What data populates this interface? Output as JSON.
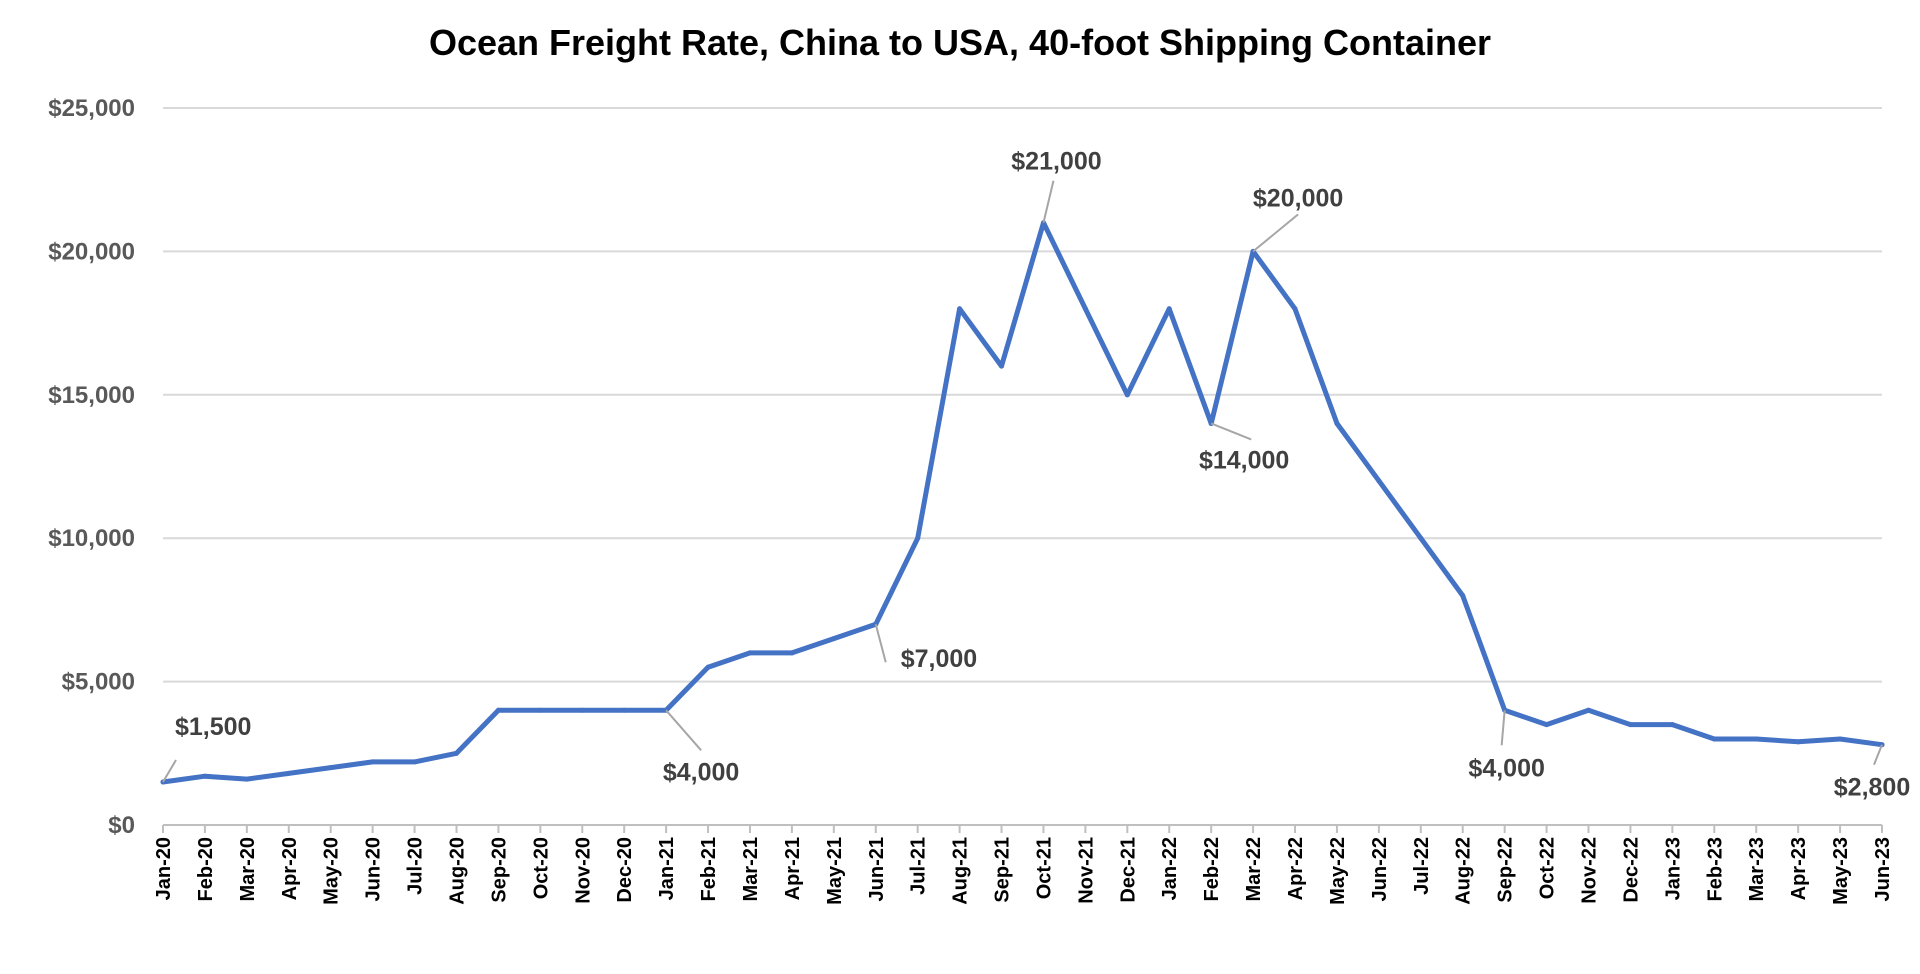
{
  "chart_data": {
    "type": "line",
    "title": "Ocean Freight Rate, China to USA, 40-foot Shipping Container",
    "xlabel": "",
    "ylabel": "",
    "ylim": [
      0,
      25000
    ],
    "yticks": [
      0,
      5000,
      10000,
      15000,
      20000,
      25000
    ],
    "ytick_labels": [
      "$0",
      "$5,000",
      "$10,000",
      "$15,000",
      "$20,000",
      "$25,000"
    ],
    "grid": true,
    "legend": "none",
    "line_color": "#4472C4",
    "categories": [
      "Jan-20",
      "Feb-20",
      "Mar-20",
      "Apr-20",
      "May-20",
      "Jun-20",
      "Jul-20",
      "Aug-20",
      "Sep-20",
      "Oct-20",
      "Nov-20",
      "Dec-20",
      "Jan-21",
      "Feb-21",
      "Mar-21",
      "Apr-21",
      "May-21",
      "Jun-21",
      "Jul-21",
      "Aug-21",
      "Sep-21",
      "Oct-21",
      "Nov-21",
      "Dec-21",
      "Jan-22",
      "Feb-22",
      "Mar-22",
      "Apr-22",
      "May-22",
      "Jun-22",
      "Jul-22",
      "Aug-22",
      "Sep-22",
      "Oct-22",
      "Nov-22",
      "Dec-22",
      "Jan-23",
      "Feb-23",
      "Mar-23",
      "Apr-23",
      "May-23",
      "Jun-23"
    ],
    "values": [
      1500,
      1700,
      1600,
      1800,
      2000,
      2200,
      2200,
      2500,
      4000,
      4000,
      4000,
      4000,
      4000,
      5500,
      6000,
      6000,
      6500,
      7000,
      10000,
      18000,
      16000,
      21000,
      18000,
      15000,
      18000,
      14000,
      20000,
      18000,
      14000,
      12000,
      10000,
      8000,
      4000,
      3500,
      4000,
      3500,
      3500,
      3000,
      3000,
      2900,
      3000,
      2800
    ],
    "data_labels": [
      {
        "index": 0,
        "text": "$1,500"
      },
      {
        "index": 12,
        "text": "$4,000"
      },
      {
        "index": 17,
        "text": "$7,000"
      },
      {
        "index": 21,
        "text": "$21,000"
      },
      {
        "index": 25,
        "text": "$14,000"
      },
      {
        "index": 26,
        "text": "$20,000"
      },
      {
        "index": 32,
        "text": "$4,000"
      },
      {
        "index": 41,
        "text": "$2,800"
      }
    ]
  }
}
